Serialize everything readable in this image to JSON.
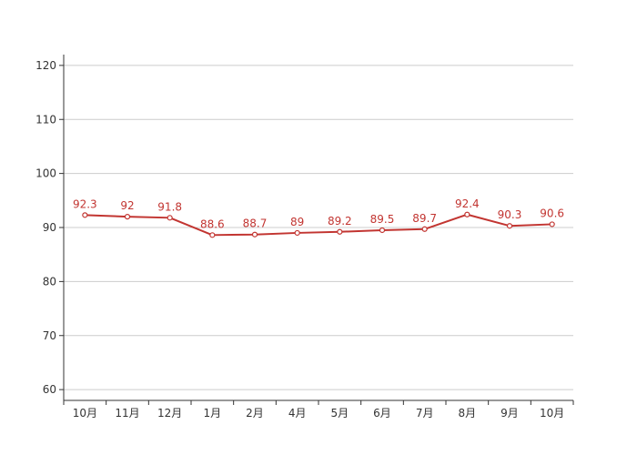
{
  "chart_data": {
    "type": "line",
    "categories": [
      "10月",
      "11月",
      "12月",
      "1月",
      "2月",
      "4月",
      "5月",
      "6月",
      "7月",
      "8月",
      "9月",
      "10月"
    ],
    "series": [
      {
        "values": [
          92.3,
          92,
          91.8,
          88.6,
          88.7,
          89,
          89.2,
          89.5,
          89.7,
          92.4,
          90.3,
          90.6
        ]
      }
    ],
    "ylim": [
      58,
      122
    ],
    "yticks": [
      60,
      70,
      80,
      90,
      100,
      110,
      120
    ],
    "title": "",
    "xlabel": "",
    "ylabel": "",
    "grid": true,
    "data_labels": true,
    "colors": {
      "line": "#c23531",
      "grid": "#cccccc",
      "axis": "#333333",
      "label": "#c23531"
    }
  }
}
